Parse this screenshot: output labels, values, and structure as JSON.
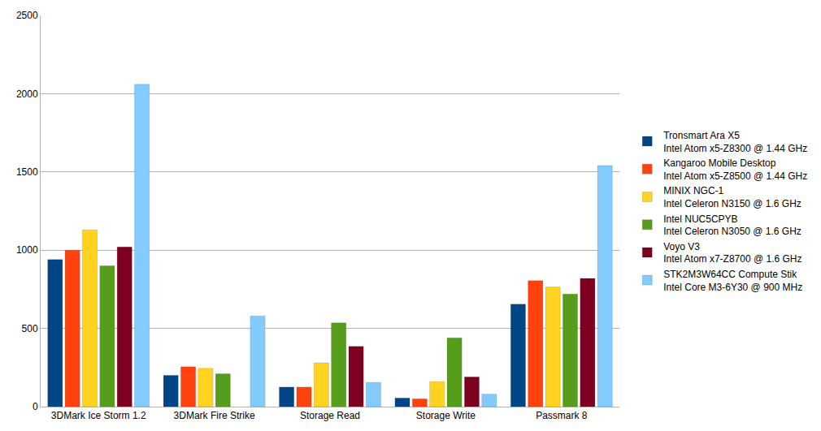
{
  "chart_data": {
    "type": "bar",
    "categories": [
      "3DMark Ice Storm 1.2",
      "3DMark Fire Strike",
      "Storage Read",
      "Storage Write",
      "Passmark 8"
    ],
    "series": [
      {
        "name": "Tronsmart Ara X5\nIntel Atom x5-Z8300 @ 1.44 GHz",
        "color": "#004586",
        "values": [
          940,
          200,
          125,
          55,
          655
        ]
      },
      {
        "name": "Kangaroo Mobile Desktop\nIntel Atom x5-Z8500 @ 1.44 GHz",
        "color": "#ff420e",
        "values": [
          1000,
          255,
          125,
          50,
          805
        ]
      },
      {
        "name": "MINIX NGC-1\nIntel Celeron N3150 @ 1.6 GHz",
        "color": "#ffd320",
        "values": [
          1130,
          245,
          280,
          160,
          765
        ]
      },
      {
        "name": "Intel NUC5CPYB\nIntel Celeron N3050 @ 1.6 GHz",
        "color": "#579d1c",
        "values": [
          900,
          210,
          535,
          440,
          720
        ]
      },
      {
        "name": "Voyo V3\nIntel Atom x7-Z8700 @ 1.6 GHz",
        "color": "#7e0021",
        "values": [
          1020,
          null,
          385,
          190,
          820
        ]
      },
      {
        "name": "STK2M3W64CC Compute Stik\nIntel Core M3-6Y30 @ 900 MHz",
        "color": "#83caff",
        "values": [
          2060,
          580,
          155,
          80,
          1540
        ]
      }
    ],
    "ylim": [
      0,
      2500
    ],
    "yticks": [
      0,
      500,
      1000,
      1500,
      2000,
      2500
    ],
    "grid": true,
    "legend": "right"
  }
}
